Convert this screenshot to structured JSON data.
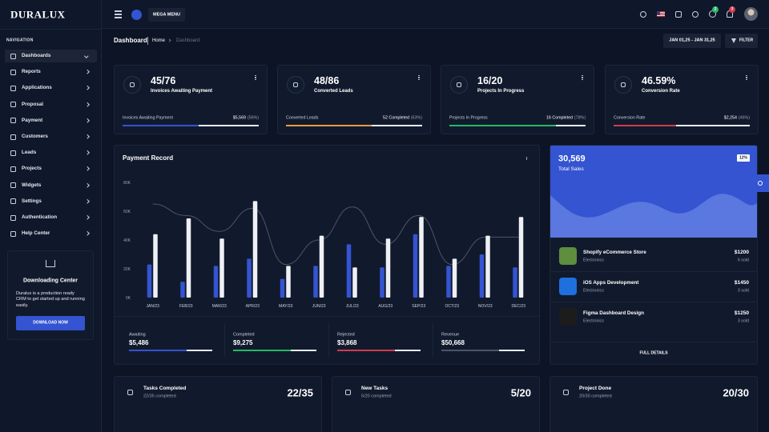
{
  "brand": "DURALUX",
  "topbar": {
    "mega_menu": "MEGA MENU",
    "badges": [
      2,
      3
    ]
  },
  "nav": {
    "heading": "NAVIGATION",
    "items": [
      "Dashboards",
      "Reports",
      "Applications",
      "Proposal",
      "Payment",
      "Customers",
      "Leads",
      "Projects",
      "Widgets",
      "Settings",
      "Authentication",
      "Help Center"
    ]
  },
  "download": {
    "title": "Downloading Center",
    "text": "Duralux is a production ready CRM to get started up and running easily.",
    "button": "DOWNLOAD NOW"
  },
  "breadcrumb": {
    "title": "Dashboard",
    "items": [
      "Home",
      "Dashboard"
    ],
    "date_range": "JAN 01,25 - JAN 31,25",
    "filter": "FILTER"
  },
  "stats": [
    {
      "value": "45/76",
      "label": "Invoices Awaiting Payment",
      "footer_label": "Invoices Awaiting Payment",
      "footer_value": "$5,569",
      "percent": 56,
      "percent_label": "(56%)",
      "color": "#3454d1"
    },
    {
      "value": "48/86",
      "label": "Converted Leads",
      "footer_label": "Converted Leads",
      "footer_value": "52 Completed",
      "percent": 63,
      "percent_label": "(63%)",
      "color": "#e49e3d"
    },
    {
      "value": "16/20",
      "label": "Projects In Progress",
      "footer_label": "Projects In Progress",
      "footer_value": "16 Completed",
      "percent": 78,
      "percent_label": "(78%)",
      "color": "#25b865"
    },
    {
      "value": "46.59%",
      "label": "Conversion Rate",
      "footer_label": "Conversion Rate",
      "footer_value": "$2,254",
      "percent": 46,
      "percent_label": "(46%)",
      "color": "#d13b4c"
    }
  ],
  "payment_record": {
    "title": "Payment Record",
    "chart_data": {
      "type": "bar",
      "categories": [
        "JAN/23",
        "FEB/23",
        "MAR/23",
        "APR/23",
        "MAY/23",
        "JUN/23",
        "JUL/23",
        "AUG/23",
        "SEP/23",
        "OCT/23",
        "NOV/23",
        "DEC/23"
      ],
      "series": [
        {
          "type": "bar",
          "color": "#3454d1",
          "values": [
            23000,
            11000,
            22000,
            27000,
            13000,
            22000,
            37000,
            21000,
            44000,
            22000,
            30000,
            21000
          ]
        },
        {
          "type": "bar",
          "color": "#eef0f4",
          "values": [
            44000,
            55000,
            41000,
            67000,
            22000,
            43000,
            21000,
            41000,
            56000,
            27000,
            43000,
            56000
          ]
        },
        {
          "type": "line",
          "color": "#4b5568",
          "values": [
            65000,
            57000,
            46000,
            62000,
            23000,
            40000,
            63000,
            37000,
            57000,
            23000,
            42000,
            42000
          ]
        }
      ],
      "ylim": [
        0,
        80000
      ],
      "yticks": [
        {
          "value": 0,
          "label": "0K"
        },
        {
          "value": 20000,
          "label": "20K"
        },
        {
          "value": 40000,
          "label": "40K"
        },
        {
          "value": 60000,
          "label": "60K"
        },
        {
          "value": 80000,
          "label": "80K"
        }
      ]
    },
    "summary": [
      {
        "label": "Awaiting",
        "value": "$5,486",
        "color": "#3454d1"
      },
      {
        "label": "Completed",
        "value": "$9,275",
        "color": "#25b865"
      },
      {
        "label": "Rejected",
        "value": "$3,868",
        "color": "#d13b4c"
      },
      {
        "label": "Revenue",
        "value": "$50,668",
        "color": "#4b5568"
      }
    ]
  },
  "sales": {
    "total": "30,569",
    "label": "Total Sales",
    "badge": "12%",
    "products": [
      {
        "name": "Shopify eCommerce Store",
        "category": "Electronics",
        "price": "$1200",
        "sold": "6 sold"
      },
      {
        "name": "iOS Apps Development",
        "category": "Electronics",
        "price": "$1450",
        "sold": "3 sold"
      },
      {
        "name": "Figma Dashboard Design",
        "category": "Electronics",
        "price": "$1250",
        "sold": "3 sold"
      }
    ],
    "link": "FULL DETAILS"
  },
  "tasks": [
    {
      "title": "Tasks Completed",
      "sub": "22/35 completed",
      "value": "22/35"
    },
    {
      "title": "New Tasks",
      "sub": "5/20 completed",
      "value": "5/20"
    },
    {
      "title": "Project Done",
      "sub": "20/30 completed",
      "value": "20/30"
    }
  ]
}
